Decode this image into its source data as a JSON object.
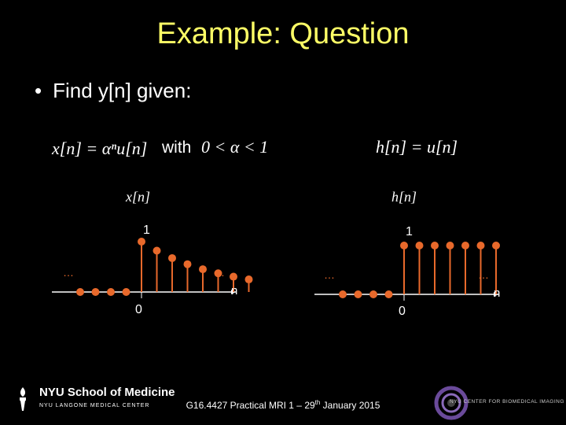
{
  "slide": {
    "title": "Example: Question",
    "bullet": "Find y[n] given:",
    "bullet_marker": "•"
  },
  "equations": {
    "x_def": "x[n] = αⁿu[n]",
    "with": "with",
    "condition": "0 < α < 1",
    "h_def": "h[n] = u[n]"
  },
  "left_plot": {
    "title": "x[n]",
    "peak_label": "1",
    "origin_label": "0",
    "axis_label": "n",
    "ellipsis_left": "…",
    "ellipsis_right": "…"
  },
  "right_plot": {
    "title": "h[n]",
    "peak_label": "1",
    "origin_label": "0",
    "axis_label": "n",
    "ellipsis_left": "…",
    "ellipsis_right": "…"
  },
  "footer": {
    "course": "G16.4427 Practical MRI 1 – 29",
    "sup": "th",
    "rest": " January 2015"
  },
  "logos": {
    "nyu_main": "NYU School of Medicine",
    "nyu_sub": "NYU LANGONE MEDICAL CENTER",
    "cbi_text": "NYU CENTER FOR BIOMEDICAL IMAGING"
  },
  "colors": {
    "title": "#ffff66",
    "stem": "#e8692b",
    "background": "#000000"
  }
}
